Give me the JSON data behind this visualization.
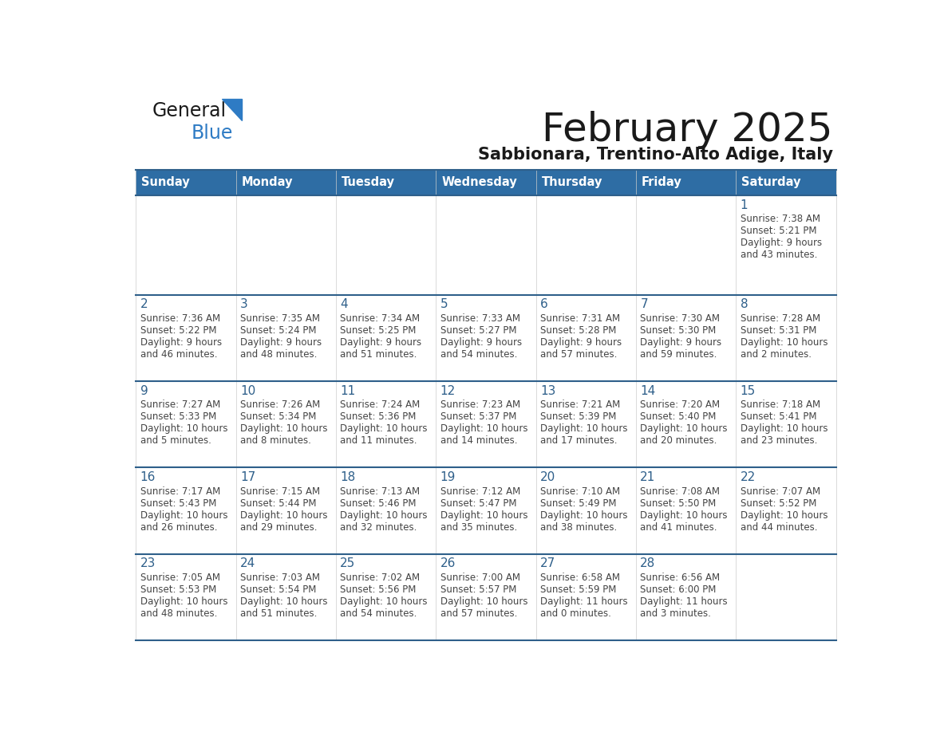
{
  "title": "February 2025",
  "subtitle": "Sabbionara, Trentino-Alto Adige, Italy",
  "days_of_week": [
    "Sunday",
    "Monday",
    "Tuesday",
    "Wednesday",
    "Thursday",
    "Friday",
    "Saturday"
  ],
  "header_bg": "#2e6da4",
  "header_text": "#ffffff",
  "cell_bg": "#ffffff",
  "cell_bg_first": "#f2f2f2",
  "divider_color": "#2e5f8a",
  "day_number_color": "#2e5f8a",
  "text_color": "#444444",
  "logo_black": "#1a1a1a",
  "logo_blue": "#2e7bc4",
  "triangle_color": "#2e7bc4",
  "calendar_data": [
    [
      {
        "day": null,
        "sunrise": null,
        "sunset": null,
        "daylight": null
      },
      {
        "day": null,
        "sunrise": null,
        "sunset": null,
        "daylight": null
      },
      {
        "day": null,
        "sunrise": null,
        "sunset": null,
        "daylight": null
      },
      {
        "day": null,
        "sunrise": null,
        "sunset": null,
        "daylight": null
      },
      {
        "day": null,
        "sunrise": null,
        "sunset": null,
        "daylight": null
      },
      {
        "day": null,
        "sunrise": null,
        "sunset": null,
        "daylight": null
      },
      {
        "day": 1,
        "sunrise": "7:38 AM",
        "sunset": "5:21 PM",
        "daylight": "9 hours\nand 43 minutes."
      }
    ],
    [
      {
        "day": 2,
        "sunrise": "7:36 AM",
        "sunset": "5:22 PM",
        "daylight": "9 hours\nand 46 minutes."
      },
      {
        "day": 3,
        "sunrise": "7:35 AM",
        "sunset": "5:24 PM",
        "daylight": "9 hours\nand 48 minutes."
      },
      {
        "day": 4,
        "sunrise": "7:34 AM",
        "sunset": "5:25 PM",
        "daylight": "9 hours\nand 51 minutes."
      },
      {
        "day": 5,
        "sunrise": "7:33 AM",
        "sunset": "5:27 PM",
        "daylight": "9 hours\nand 54 minutes."
      },
      {
        "day": 6,
        "sunrise": "7:31 AM",
        "sunset": "5:28 PM",
        "daylight": "9 hours\nand 57 minutes."
      },
      {
        "day": 7,
        "sunrise": "7:30 AM",
        "sunset": "5:30 PM",
        "daylight": "9 hours\nand 59 minutes."
      },
      {
        "day": 8,
        "sunrise": "7:28 AM",
        "sunset": "5:31 PM",
        "daylight": "10 hours\nand 2 minutes."
      }
    ],
    [
      {
        "day": 9,
        "sunrise": "7:27 AM",
        "sunset": "5:33 PM",
        "daylight": "10 hours\nand 5 minutes."
      },
      {
        "day": 10,
        "sunrise": "7:26 AM",
        "sunset": "5:34 PM",
        "daylight": "10 hours\nand 8 minutes."
      },
      {
        "day": 11,
        "sunrise": "7:24 AM",
        "sunset": "5:36 PM",
        "daylight": "10 hours\nand 11 minutes."
      },
      {
        "day": 12,
        "sunrise": "7:23 AM",
        "sunset": "5:37 PM",
        "daylight": "10 hours\nand 14 minutes."
      },
      {
        "day": 13,
        "sunrise": "7:21 AM",
        "sunset": "5:39 PM",
        "daylight": "10 hours\nand 17 minutes."
      },
      {
        "day": 14,
        "sunrise": "7:20 AM",
        "sunset": "5:40 PM",
        "daylight": "10 hours\nand 20 minutes."
      },
      {
        "day": 15,
        "sunrise": "7:18 AM",
        "sunset": "5:41 PM",
        "daylight": "10 hours\nand 23 minutes."
      }
    ],
    [
      {
        "day": 16,
        "sunrise": "7:17 AM",
        "sunset": "5:43 PM",
        "daylight": "10 hours\nand 26 minutes."
      },
      {
        "day": 17,
        "sunrise": "7:15 AM",
        "sunset": "5:44 PM",
        "daylight": "10 hours\nand 29 minutes."
      },
      {
        "day": 18,
        "sunrise": "7:13 AM",
        "sunset": "5:46 PM",
        "daylight": "10 hours\nand 32 minutes."
      },
      {
        "day": 19,
        "sunrise": "7:12 AM",
        "sunset": "5:47 PM",
        "daylight": "10 hours\nand 35 minutes."
      },
      {
        "day": 20,
        "sunrise": "7:10 AM",
        "sunset": "5:49 PM",
        "daylight": "10 hours\nand 38 minutes."
      },
      {
        "day": 21,
        "sunrise": "7:08 AM",
        "sunset": "5:50 PM",
        "daylight": "10 hours\nand 41 minutes."
      },
      {
        "day": 22,
        "sunrise": "7:07 AM",
        "sunset": "5:52 PM",
        "daylight": "10 hours\nand 44 minutes."
      }
    ],
    [
      {
        "day": 23,
        "sunrise": "7:05 AM",
        "sunset": "5:53 PM",
        "daylight": "10 hours\nand 48 minutes."
      },
      {
        "day": 24,
        "sunrise": "7:03 AM",
        "sunset": "5:54 PM",
        "daylight": "10 hours\nand 51 minutes."
      },
      {
        "day": 25,
        "sunrise": "7:02 AM",
        "sunset": "5:56 PM",
        "daylight": "10 hours\nand 54 minutes."
      },
      {
        "day": 26,
        "sunrise": "7:00 AM",
        "sunset": "5:57 PM",
        "daylight": "10 hours\nand 57 minutes."
      },
      {
        "day": 27,
        "sunrise": "6:58 AM",
        "sunset": "5:59 PM",
        "daylight": "11 hours\nand 0 minutes."
      },
      {
        "day": 28,
        "sunrise": "6:56 AM",
        "sunset": "6:00 PM",
        "daylight": "11 hours\nand 3 minutes."
      },
      {
        "day": null,
        "sunrise": null,
        "sunset": null,
        "daylight": null
      }
    ]
  ]
}
